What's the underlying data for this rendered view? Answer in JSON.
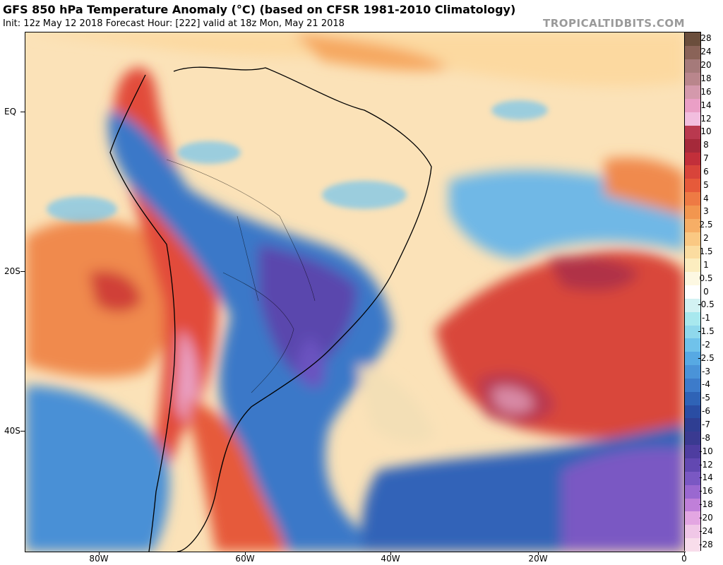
{
  "header": {
    "title": "GFS 850 hPa Temperature Anomaly (°C) (based on CFSR 1981-2010 Climatology)",
    "subtitle": "Init: 12z May 12 2018   Forecast Hour: [222]   valid at 18z Mon, May 21 2018",
    "brand": "TROPICALTIDBITS.COM"
  },
  "map": {
    "region": "South America and South Atlantic",
    "lat_labels": [
      "EQ",
      "20S",
      "40S"
    ],
    "lon_labels": [
      "80W",
      "60W",
      "40W",
      "20W",
      "0"
    ]
  },
  "colorbar": {
    "levels": [
      "28",
      "24",
      "20",
      "18",
      "16",
      "14",
      "12",
      "10",
      "8",
      "7",
      "6",
      "5",
      "4",
      "3",
      "2.5",
      "2",
      "1.5",
      "1",
      "0.5",
      "0",
      "-0.5",
      "-1",
      "-1.5",
      "-2",
      "-2.5",
      "-3",
      "-4",
      "-5",
      "-6",
      "-7",
      "-8",
      "-10",
      "-12",
      "-14",
      "-16",
      "-18",
      "-20",
      "-24",
      "-28"
    ],
    "colors": [
      "#6b4e3c",
      "#8a6358",
      "#a57a7a",
      "#b9868c",
      "#d499ac",
      "#ea9fc6",
      "#f2bedf",
      "#b9394f",
      "#a5293a",
      "#c22f3a",
      "#d8443a",
      "#e65a3a",
      "#ee7a44",
      "#f2964f",
      "#f6ae66",
      "#fac883",
      "#fbdca0",
      "#fcedbf",
      "#fdf8e2",
      "#ffffff",
      "#d3f2f3",
      "#a8e8ee",
      "#8fd8ec",
      "#70c2ea",
      "#57a9e3",
      "#4a93d8",
      "#3d7bca",
      "#2f63b6",
      "#2a4da3",
      "#2f3e92",
      "#3a3a91",
      "#4e3da0",
      "#6248b1",
      "#7a58c3",
      "#9a68d0",
      "#c07fd9",
      "#e3a6e2",
      "#f0c7e7",
      "#f8ddeb"
    ]
  }
}
